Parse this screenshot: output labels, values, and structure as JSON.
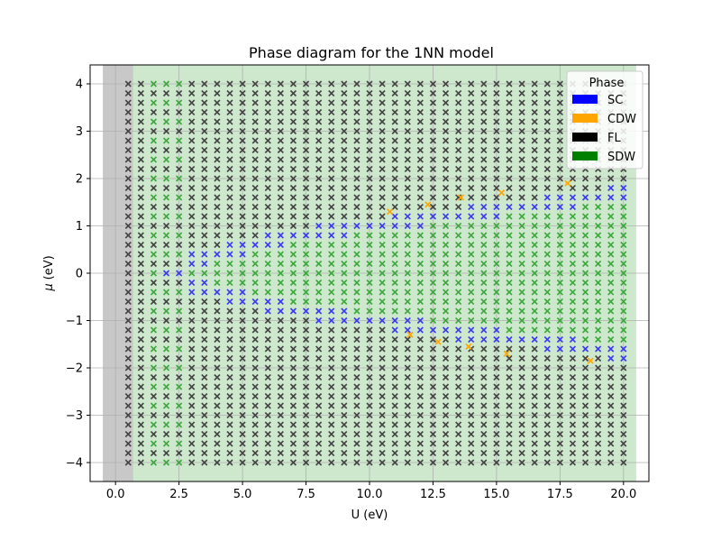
{
  "chart_data": {
    "type": "scatter",
    "title": "Phase diagram for the 1NN model",
    "xlabel": "U (eV)",
    "ylabel_symbol": "μ",
    "ylabel_unit": "(eV)",
    "xlim": [
      -1.0,
      21.0
    ],
    "ylim": [
      -4.4,
      4.4
    ],
    "xticks": [
      0.0,
      2.5,
      5.0,
      7.5,
      10.0,
      12.5,
      15.0,
      17.5,
      20.0
    ],
    "xtick_labels": [
      "0.0",
      "2.5",
      "5.0",
      "7.5",
      "10.0",
      "12.5",
      "15.0",
      "17.5",
      "20.0"
    ],
    "yticks": [
      -4,
      -3,
      -2,
      -1,
      0,
      1,
      2,
      3,
      4
    ],
    "ytick_labels": [
      "−4",
      "−3",
      "−2",
      "−1",
      "0",
      "1",
      "2",
      "3",
      "4"
    ],
    "grid": true,
    "legend": {
      "title": "Phase",
      "placement": "top-right",
      "entries": [
        {
          "label": "SC",
          "color": "#0000ff"
        },
        {
          "label": "CDW",
          "color": "#ffa500"
        },
        {
          "label": "FL",
          "color": "#000000"
        },
        {
          "label": "SDW",
          "color": "#008000"
        }
      ]
    },
    "background_regions": [
      {
        "phase": "FL",
        "color": "#c8c8c8",
        "x": [
          -0.5,
          0.7
        ],
        "y": [
          -4.4,
          4.4
        ]
      },
      {
        "phase": "SDW",
        "color": "#cde8cd",
        "x": [
          0.7,
          20.5
        ],
        "y": [
          -4.4,
          4.4
        ]
      }
    ],
    "sampling": {
      "u_min": 0.5,
      "u_max": 20.0,
      "u_step": 0.5,
      "mu_min": -4.0,
      "mu_max": 4.0,
      "mu_step": 0.2
    },
    "boundaries": {
      "upper_sc_center": [
        [
          3.0,
          0.25
        ],
        [
          5.0,
          0.55
        ],
        [
          7.5,
          0.82
        ],
        [
          10.0,
          1.0
        ],
        [
          12.5,
          1.18
        ],
        [
          15.0,
          1.33
        ],
        [
          17.5,
          1.5
        ],
        [
          20.0,
          1.68
        ]
      ],
      "lower_sc_center": [
        [
          3.0,
          -0.25
        ],
        [
          5.0,
          -0.55
        ],
        [
          7.5,
          -0.82
        ],
        [
          10.0,
          -1.0
        ],
        [
          12.5,
          -1.18
        ],
        [
          15.0,
          -1.33
        ],
        [
          17.5,
          -1.5
        ],
        [
          20.0,
          -1.68
        ]
      ],
      "sc_band_halfwidth": 0.16,
      "cusp_u": 2.6
    },
    "cdw_points": [
      {
        "u": 10.8,
        "mu": 1.3
      },
      {
        "u": 12.3,
        "mu": 1.45
      },
      {
        "u": 13.6,
        "mu": 1.6
      },
      {
        "u": 15.2,
        "mu": 1.7
      },
      {
        "u": 17.8,
        "mu": 1.9
      },
      {
        "u": 11.6,
        "mu": -1.3
      },
      {
        "u": 12.7,
        "mu": -1.45
      },
      {
        "u": 13.9,
        "mu": -1.55
      },
      {
        "u": 15.4,
        "mu": -1.7
      },
      {
        "u": 18.7,
        "mu": -1.85
      }
    ]
  }
}
